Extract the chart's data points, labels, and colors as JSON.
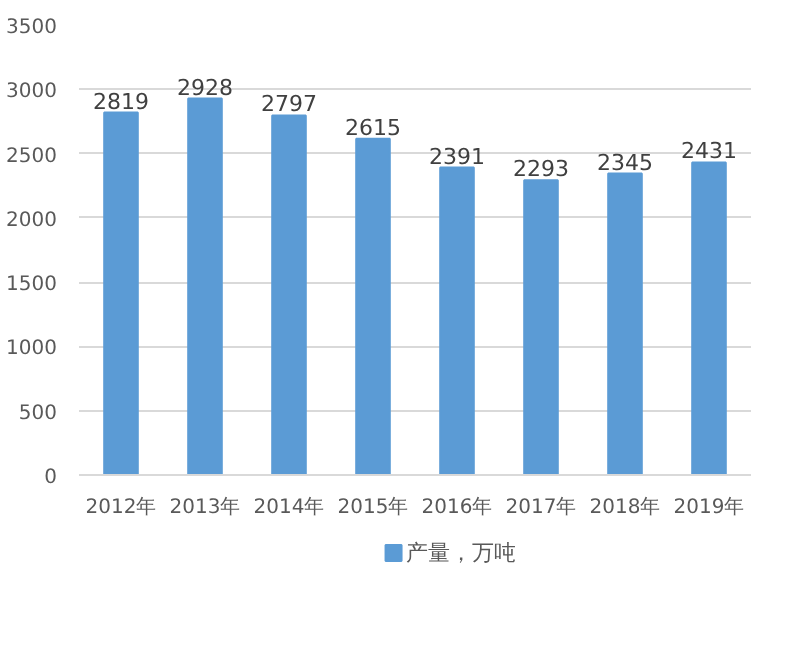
{
  "chart_data": {
    "type": "bar",
    "categories": [
      "2012年",
      "2013年",
      "2014年",
      "2015年",
      "2016年",
      "2017年",
      "2018年",
      "2019年"
    ],
    "series": [
      {
        "name": "产量，万吨",
        "color": "#5b9bd5",
        "values": [
          2819,
          2928,
          2797,
          2615,
          2391,
          2293,
          2345,
          2431
        ]
      }
    ],
    "ylim": [
      0,
      3500
    ],
    "yticks": [
      0,
      500,
      1000,
      1500,
      2000,
      2500,
      3000,
      3500
    ],
    "grid": "y",
    "legend": "bottom",
    "data_labels": true
  }
}
